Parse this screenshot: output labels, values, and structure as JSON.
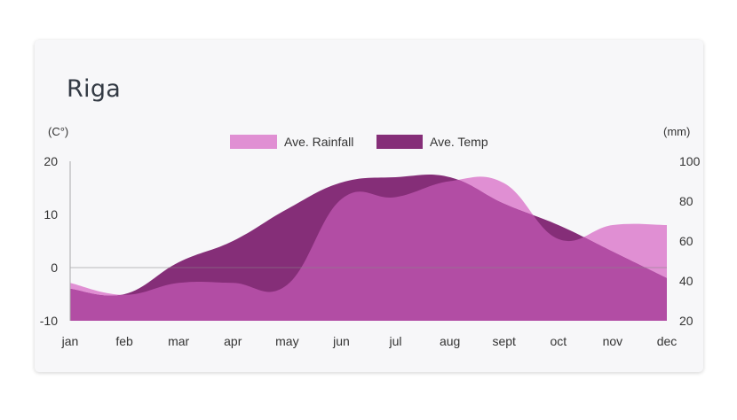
{
  "card": {
    "title": "Riga"
  },
  "chart_data": {
    "type": "area",
    "title": "Riga",
    "categories": [
      "jan",
      "feb",
      "mar",
      "apr",
      "may",
      "jun",
      "jul",
      "aug",
      "sept",
      "oct",
      "nov",
      "dec"
    ],
    "left_axis": {
      "label": "(C°)",
      "ylim": [
        -10,
        20
      ],
      "ticks": [
        "20",
        "10",
        "0",
        "-10"
      ]
    },
    "right_axis": {
      "label": "(mm)",
      "ylim": [
        20,
        100
      ],
      "ticks": [
        "100",
        "80",
        "60",
        "40",
        "20"
      ]
    },
    "series": [
      {
        "name": "Ave. Rainfall",
        "axis": "right",
        "color": "#e08fd3",
        "values": [
          39,
          33,
          39,
          39,
          38,
          81,
          82,
          90,
          89,
          61,
          68,
          68
        ]
      },
      {
        "name": "Ave. Temp",
        "axis": "left",
        "color": "#852e78",
        "values": [
          -4,
          -5,
          1,
          5,
          11,
          16,
          17,
          17,
          12,
          8,
          3,
          -2
        ]
      }
    ],
    "overlap_color": "#b24da4",
    "zero_line": true,
    "legend_position": "top-center"
  }
}
